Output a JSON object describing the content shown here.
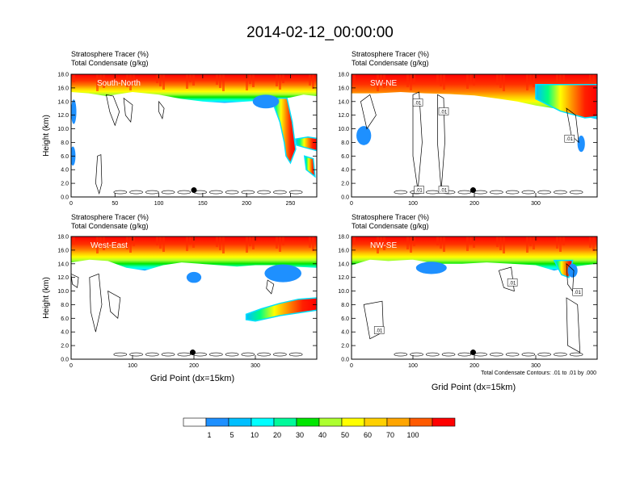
{
  "figure": {
    "title": "2014-02-12_00:00:00",
    "footnote": "Total Condensate Contours: .01 to .01 by .000"
  },
  "chart_data": [
    {
      "type": "heatmap",
      "title_line1": "Stratosphere Tracer   (%)",
      "title_line2": "Total Condensate   (g/kg)",
      "panel_label": "South-North",
      "ylabel": "Height (km)",
      "xlabel": "",
      "xlim": [
        0,
        280
      ],
      "ylim": [
        0,
        18
      ],
      "xticks": [
        0,
        50,
        100,
        150,
        200,
        250
      ],
      "yticks": [
        0,
        2,
        4,
        6,
        8,
        10,
        12,
        14,
        16,
        18
      ],
      "marker": {
        "x": 140,
        "y": 1.0
      },
      "tropopause": [
        [
          0,
          16.0
        ],
        [
          20,
          15.8
        ],
        [
          40,
          15.4
        ],
        [
          70,
          16.0
        ],
        [
          100,
          15.6
        ],
        [
          125,
          15.0
        ],
        [
          150,
          14.6
        ],
        [
          175,
          14.4
        ],
        [
          200,
          14.6
        ],
        [
          225,
          14.8
        ],
        [
          250,
          15.2
        ],
        [
          265,
          15.6
        ],
        [
          280,
          15.4
        ]
      ],
      "intrusions": [
        {
          "points": [
            [
              228,
              14.5
            ],
            [
              238,
              11.0
            ],
            [
              243,
              8.0
            ],
            [
              245,
              6.0
            ],
            [
              250,
              5.0
            ],
            [
              256,
              7.0
            ],
            [
              252,
              11.0
            ],
            [
              246,
              14.5
            ]
          ]
        },
        {
          "points": [
            [
              256,
              8.5
            ],
            [
              270,
              8.8
            ],
            [
              280,
              8.6
            ],
            [
              280,
              6.8
            ],
            [
              268,
              7.2
            ],
            [
              257,
              7.6
            ]
          ]
        },
        {
          "points": [
            [
              266,
              6.0
            ],
            [
              276,
              5.6
            ],
            [
              278,
              3.0
            ],
            [
              268,
              4.0
            ]
          ]
        }
      ],
      "blue_patches": [
        {
          "cx": 3,
          "cy": 12.5,
          "rx": 3,
          "ry": 1.8
        },
        {
          "cx": 2,
          "cy": 6.0,
          "rx": 3,
          "ry": 1.4
        },
        {
          "cx": 222,
          "cy": 14.0,
          "rx": 15,
          "ry": 1.0
        }
      ],
      "contours": [
        {
          "points": [
            [
              40,
              15
            ],
            [
              48,
              14.8
            ],
            [
              55,
              12.5
            ],
            [
              50,
              10.5
            ],
            [
              44,
              12.5
            ]
          ]
        },
        {
          "points": [
            [
              60,
              14.5
            ],
            [
              70,
              13.5
            ],
            [
              68,
              11
            ],
            [
              62,
              12
            ]
          ]
        },
        {
          "points": [
            [
              30,
              6
            ],
            [
              34,
              6.2
            ],
            [
              35,
              2
            ],
            [
              32,
              0.5
            ],
            [
              28,
              2
            ]
          ]
        },
        {
          "points": [
            [
              100,
              14
            ],
            [
              106,
              13
            ],
            [
              104,
              11.5
            ],
            [
              100,
              12.5
            ]
          ]
        }
      ],
      "contour_labels": []
    },
    {
      "type": "heatmap",
      "title_line1": "Stratosphere Tracer   (%)",
      "title_line2": "Total Condensate   (g/kg)",
      "panel_label": "SW-NE",
      "ylabel": "",
      "xlabel": "",
      "xlim": [
        0,
        400
      ],
      "ylim": [
        0,
        18
      ],
      "xticks": [
        0,
        100,
        200,
        300
      ],
      "yticks": [
        0,
        2,
        4,
        6,
        8,
        10,
        12,
        14,
        16,
        18
      ],
      "marker": {
        "x": 198,
        "y": 1.0
      },
      "tropopause": [
        [
          0,
          15.8
        ],
        [
          40,
          15.8
        ],
        [
          80,
          16.0
        ],
        [
          120,
          15.8
        ],
        [
          160,
          15.7
        ],
        [
          200,
          15.5
        ],
        [
          240,
          15.0
        ],
        [
          270,
          14.6
        ],
        [
          300,
          14.0
        ],
        [
          330,
          13.6
        ],
        [
          360,
          13.2
        ],
        [
          380,
          12.4
        ],
        [
          400,
          12.0
        ]
      ],
      "intrusions": [
        {
          "points": [
            [
              300,
              14.4
            ],
            [
              340,
              12.6
            ],
            [
              380,
              11.6
            ],
            [
              400,
              11.8
            ],
            [
              400,
              16.5
            ],
            [
              300,
              16.5
            ]
          ]
        }
      ],
      "blue_patches": [
        {
          "cx": 20,
          "cy": 9.0,
          "rx": 12,
          "ry": 1.4
        },
        {
          "cx": 374,
          "cy": 7.8,
          "rx": 6,
          "ry": 1.2
        }
      ],
      "contours": [
        {
          "points": [
            [
              15,
              14
            ],
            [
              30,
              15
            ],
            [
              40,
              12
            ],
            [
              25,
              10
            ]
          ]
        },
        {
          "points": [
            [
              100,
              15
            ],
            [
              110,
              15.4
            ],
            [
              115,
              8
            ],
            [
              108,
              1
            ],
            [
              100,
              6
            ]
          ]
        },
        {
          "points": [
            [
              140,
              15
            ],
            [
              150,
              14.5
            ],
            [
              152,
              8
            ],
            [
              146,
              1
            ],
            [
              140,
              8
            ]
          ]
        },
        {
          "points": [
            [
              350,
              13
            ],
            [
              365,
              12
            ],
            [
              370,
              8
            ],
            [
              358,
              9
            ]
          ]
        }
      ],
      "contour_labels": [
        {
          "x": 108,
          "y": 13.8,
          "text": ".01"
        },
        {
          "x": 150,
          "y": 12.5,
          "text": ".01"
        },
        {
          "x": 355,
          "y": 8.5,
          "text": ".01"
        },
        {
          "x": 110,
          "y": 1.0,
          "text": ".01"
        },
        {
          "x": 150,
          "y": 1.0,
          "text": ".01"
        }
      ]
    },
    {
      "type": "heatmap",
      "title_line1": "Stratosphere Tracer   (%)",
      "title_line2": "Total Condensate   (g/kg)",
      "panel_label": "West-East",
      "ylabel": "Height (km)",
      "xlabel": "Grid Point (dx=15km)",
      "xlim": [
        0,
        400
      ],
      "ylim": [
        0,
        18
      ],
      "xticks": [
        0,
        100,
        200,
        300
      ],
      "yticks": [
        0,
        2,
        4,
        6,
        8,
        10,
        12,
        14,
        16,
        18
      ],
      "marker": {
        "x": 198,
        "y": 1.0
      },
      "tropopause": [
        [
          0,
          14.8
        ],
        [
          30,
          15.2
        ],
        [
          60,
          15.0
        ],
        [
          90,
          14.0
        ],
        [
          120,
          13.6
        ],
        [
          150,
          14.4
        ],
        [
          180,
          14.8
        ],
        [
          210,
          14.6
        ],
        [
          240,
          14.4
        ],
        [
          270,
          14.2
        ],
        [
          300,
          14.4
        ],
        [
          330,
          14.4
        ],
        [
          360,
          14.2
        ],
        [
          400,
          14.0
        ]
      ],
      "intrusions": [
        {
          "points": [
            [
              285,
              6.6
            ],
            [
              310,
              7.4
            ],
            [
              340,
              8.2
            ],
            [
              370,
              8.8
            ],
            [
              400,
              9.0
            ],
            [
              400,
              7.2
            ],
            [
              370,
              6.8
            ],
            [
              340,
              6.4
            ],
            [
              300,
              5.6
            ],
            [
              285,
              5.8
            ]
          ]
        }
      ],
      "blue_patches": [
        {
          "cx": 345,
          "cy": 12.6,
          "rx": 30,
          "ry": 1.3
        },
        {
          "cx": 200,
          "cy": 12.0,
          "rx": 12,
          "ry": 0.8
        }
      ],
      "contours": [
        {
          "points": [
            [
              30,
              12
            ],
            [
              45,
              12.5
            ],
            [
              50,
              8
            ],
            [
              40,
              4
            ],
            [
              32,
              7
            ]
          ]
        },
        {
          "points": [
            [
              0,
              12.5
            ],
            [
              12,
              12
            ],
            [
              10,
              10.5
            ],
            [
              2,
              11
            ]
          ]
        },
        {
          "points": [
            [
              60,
              10
            ],
            [
              80,
              9
            ],
            [
              76,
              6
            ],
            [
              64,
              7
            ]
          ]
        },
        {
          "points": [
            [
              320,
              11.6
            ],
            [
              330,
              11
            ],
            [
              326,
              9.6
            ],
            [
              318,
              10.4
            ]
          ]
        }
      ],
      "contour_labels": []
    },
    {
      "type": "heatmap",
      "title_line1": "Stratosphere Tracer   (%)",
      "title_line2": "Total Condensate   (g/kg)",
      "panel_label": "NW-SE",
      "ylabel": "",
      "xlabel": "Grid Point (dx=15km)",
      "xlim": [
        0,
        400
      ],
      "ylim": [
        0,
        18
      ],
      "xticks": [
        0,
        100,
        200,
        300
      ],
      "yticks": [
        0,
        2,
        4,
        6,
        8,
        10,
        12,
        14,
        16,
        18
      ],
      "marker": {
        "x": 198,
        "y": 1.0
      },
      "tropopause": [
        [
          0,
          14.4
        ],
        [
          30,
          15.2
        ],
        [
          60,
          15.0
        ],
        [
          100,
          15.2
        ],
        [
          140,
          14.6
        ],
        [
          180,
          14.6
        ],
        [
          220,
          14.8
        ],
        [
          260,
          14.6
        ],
        [
          300,
          14.4
        ],
        [
          330,
          13.6
        ],
        [
          350,
          14.0
        ],
        [
          380,
          14.4
        ],
        [
          400,
          14.6
        ]
      ],
      "intrusions": [
        {
          "points": [
            [
              330,
              14.5
            ],
            [
              342,
              12.4
            ],
            [
              354,
              12.0
            ],
            [
              360,
              14.5
            ]
          ]
        }
      ],
      "blue_patches": [
        {
          "cx": 130,
          "cy": 13.4,
          "rx": 25,
          "ry": 0.9
        },
        {
          "cx": 360,
          "cy": 13.0,
          "rx": 8,
          "ry": 1.0
        }
      ],
      "contours": [
        {
          "points": [
            [
              240,
              13
            ],
            [
              260,
              13.5
            ],
            [
              265,
              10
            ],
            [
              248,
              10.5
            ]
          ]
        },
        {
          "points": [
            [
              350,
              14
            ],
            [
              362,
              13
            ],
            [
              360,
              10
            ],
            [
              352,
              11
            ]
          ]
        },
        {
          "points": [
            [
              20,
              8
            ],
            [
              50,
              8.5
            ],
            [
              52,
              4
            ],
            [
              30,
              3
            ]
          ]
        },
        {
          "points": [
            [
              350,
              9
            ],
            [
              368,
              8
            ],
            [
              372,
              1
            ],
            [
              352,
              2
            ]
          ]
        }
      ],
      "contour_labels": [
        {
          "x": 262,
          "y": 11.2,
          "text": ".01"
        },
        {
          "x": 368,
          "y": 9.8,
          "text": ".01"
        },
        {
          "x": 45,
          "y": 4.2,
          "text": ".01"
        }
      ]
    }
  ],
  "colorbar": {
    "boundary_labels": [
      "1",
      "5",
      "10",
      "20",
      "30",
      "40",
      "50",
      "60",
      "70",
      "100"
    ],
    "colors": [
      "#ffffff",
      "#1e90ff",
      "#00bfff",
      "#00ffff",
      "#00fa9a",
      "#00e600",
      "#adff2f",
      "#ffff00",
      "#ffd000",
      "#ffa500",
      "#ff5a00",
      "#ff0000"
    ]
  }
}
